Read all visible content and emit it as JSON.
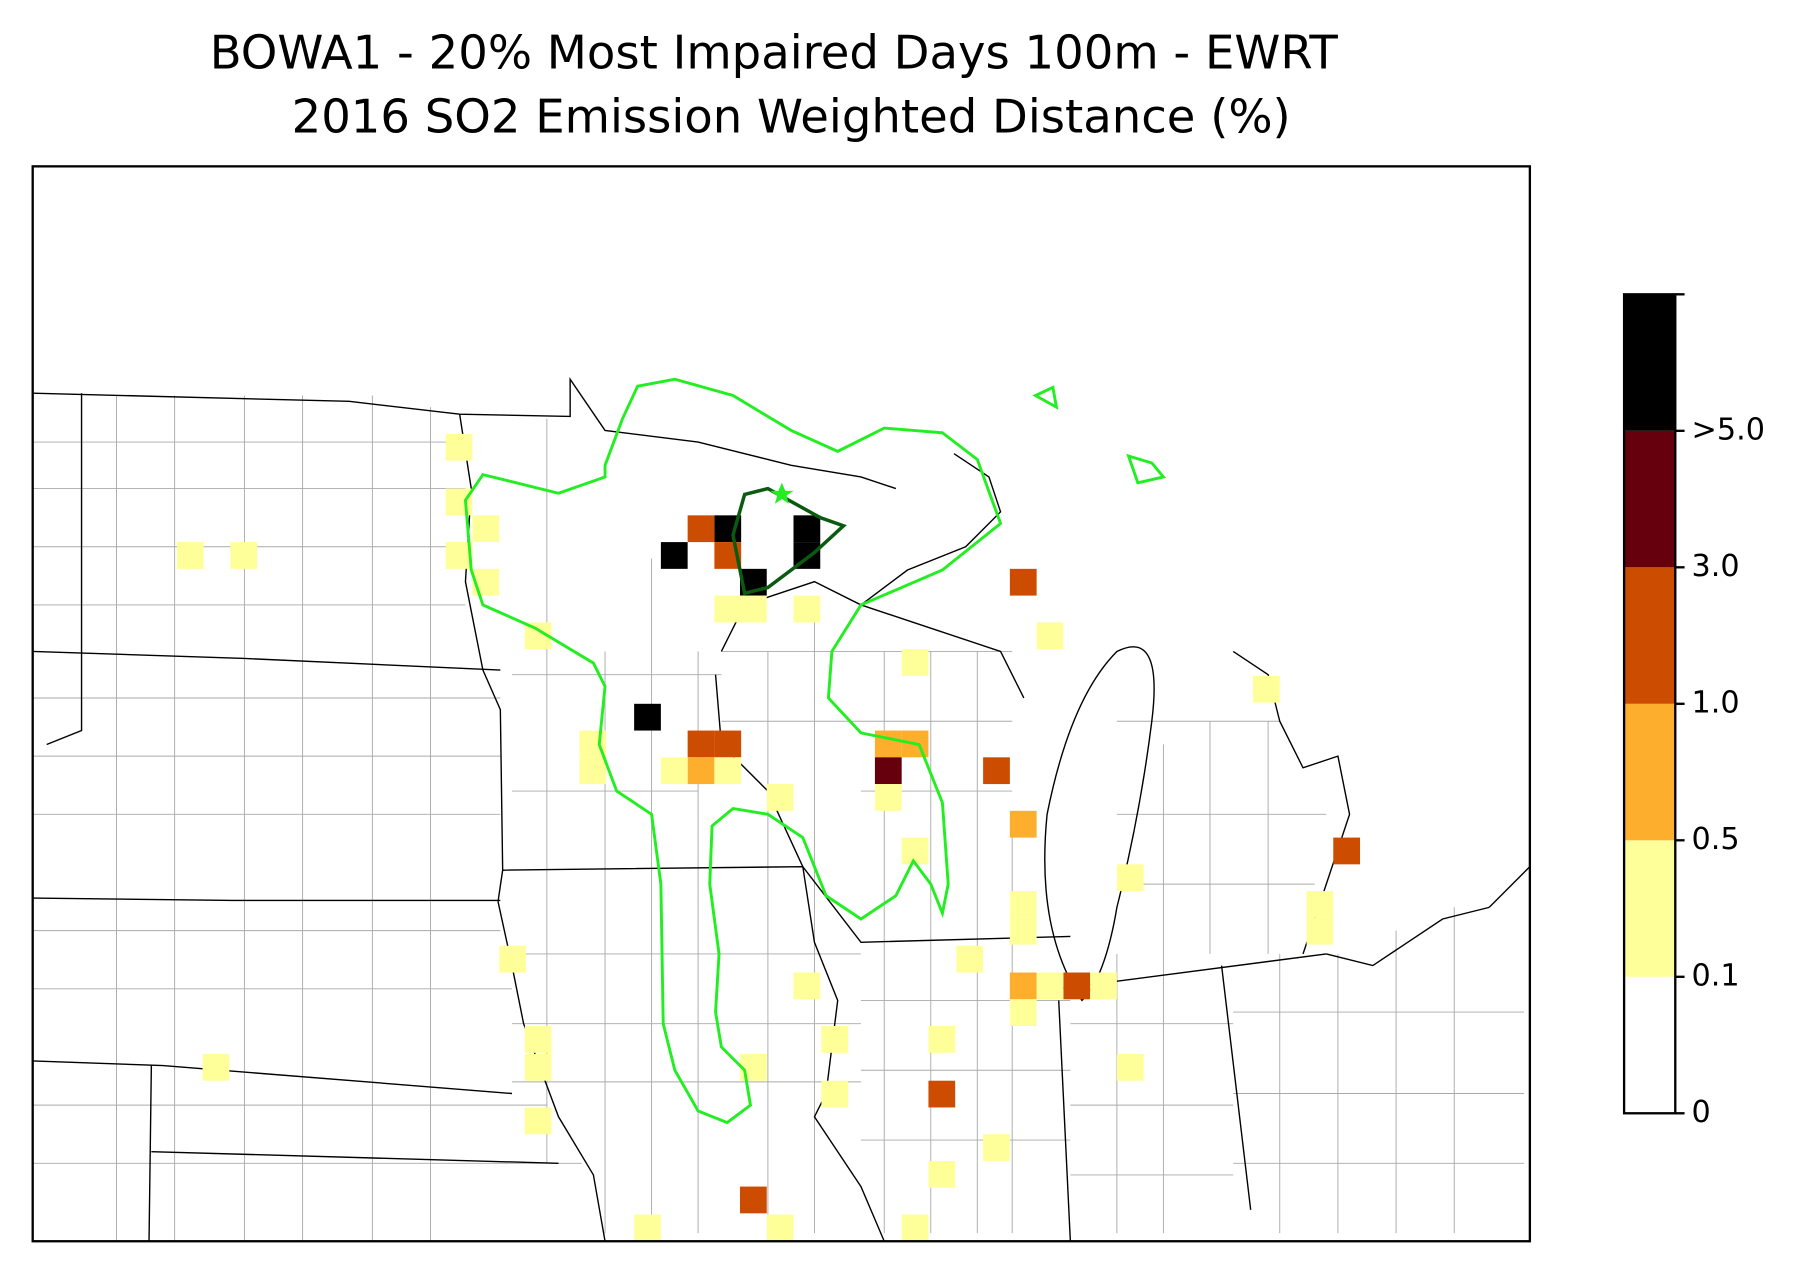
{
  "header": {
    "title": "BOWA1 - 20% Most Impaired Days 100m - EWRT",
    "subtitle": "2016 SO2 Emission Weighted Distance (%)"
  },
  "colorbar": {
    "ticks": [
      0,
      0.1,
      0.5,
      {
        "value": 1,
        "label": "1.0"
      },
      {
        "value": 3,
        "label": "3.0"
      },
      {
        "value": 5,
        "label": ">5.0"
      }
    ],
    "colors": [
      "#ffffff",
      "#ffff99",
      "#fdae2d",
      "#cc4c02",
      "#67000d",
      "#000000"
    ]
  }
}
